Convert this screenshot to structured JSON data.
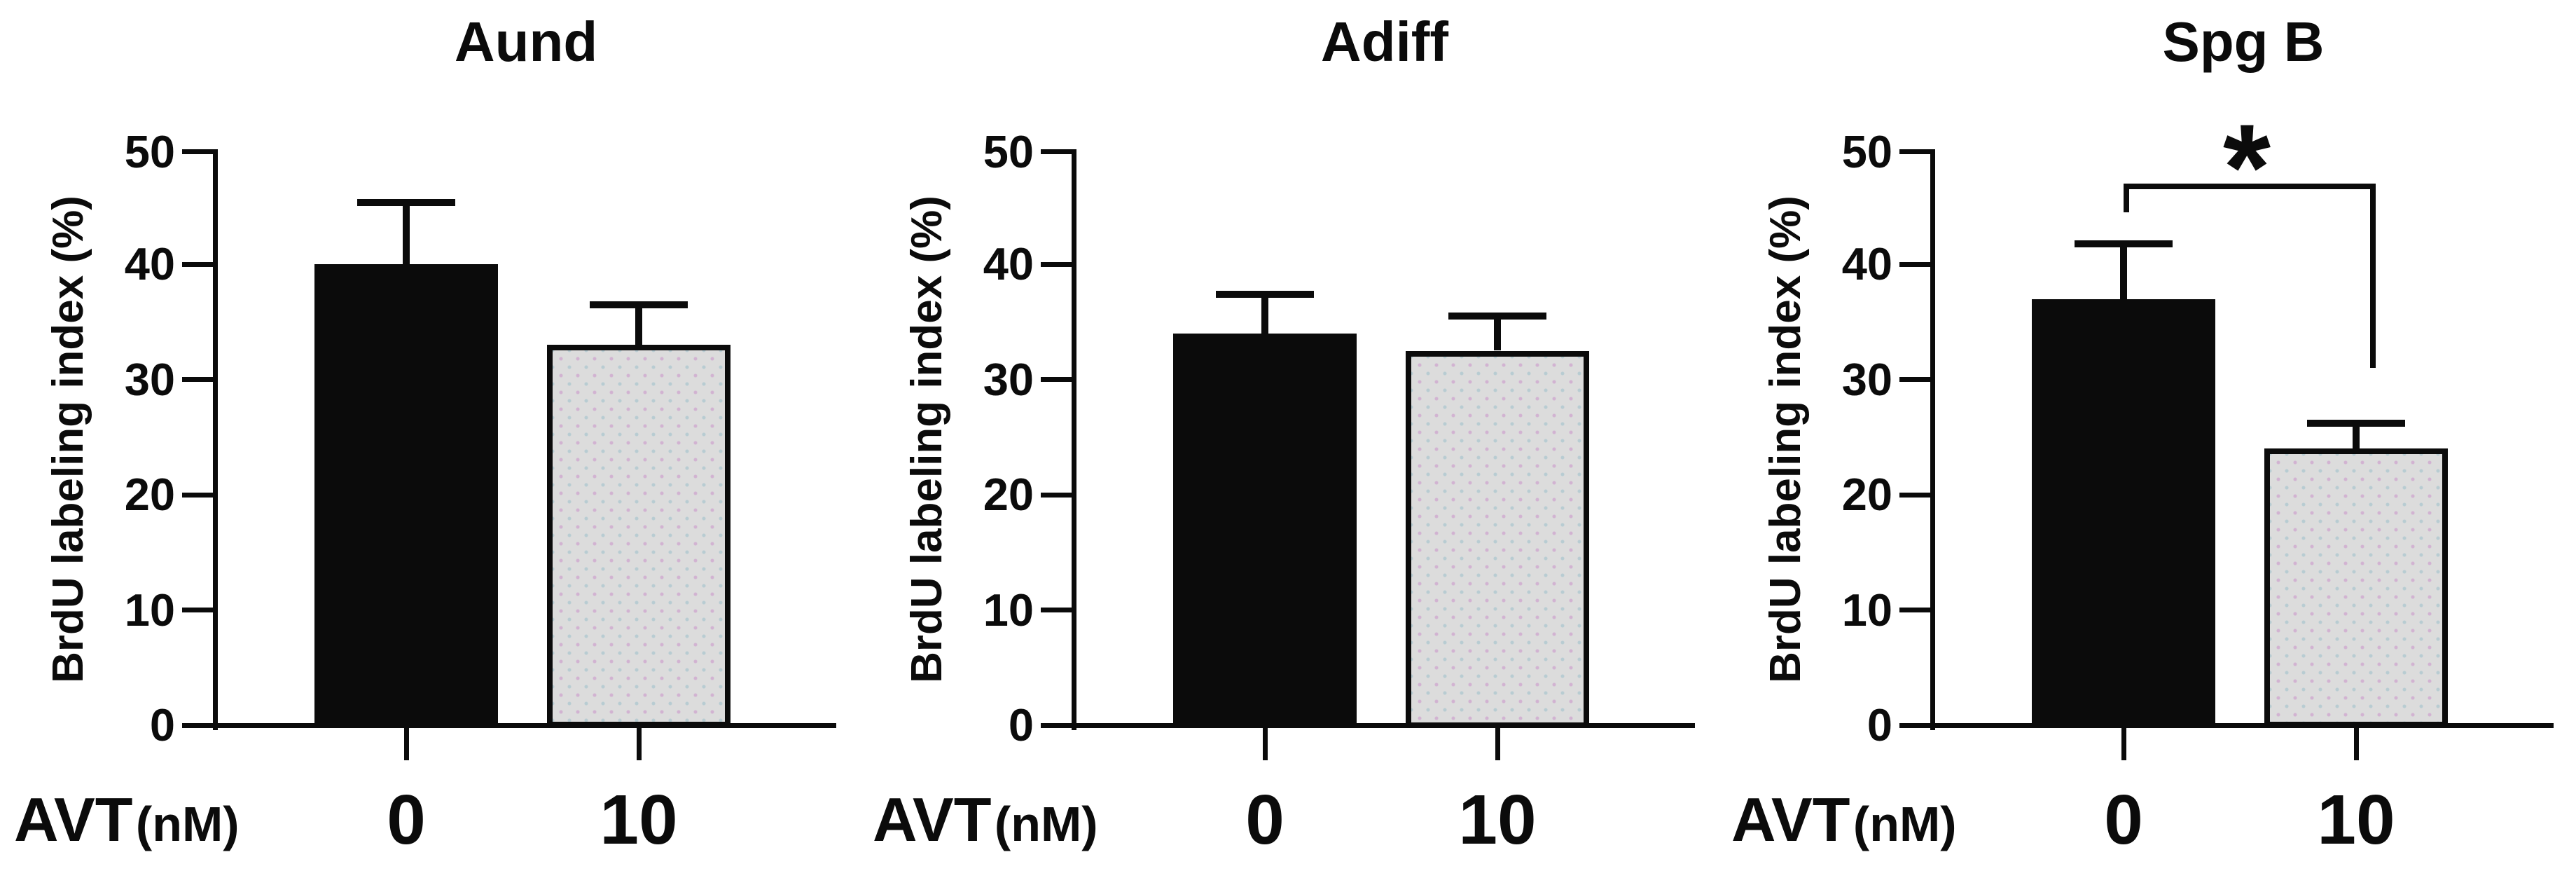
{
  "figure": {
    "x_label_main": "AVT",
    "x_label_unit": "(nM)",
    "y_axis_label": "BrdU labeling index (%)",
    "y_max": 50,
    "y_ticks": [
      0,
      10,
      20,
      30,
      40,
      50
    ],
    "colors": {
      "bar_avt_0": "#0b0b0b",
      "bar_avt_10": "#dcdcdc",
      "axis": "#0b0b0b",
      "background": "#ffffff"
    }
  },
  "chart_data": [
    {
      "type": "bar",
      "title": "Aund",
      "ylabel": "BrdU labeling index (%)",
      "xlabel": "AVT (nM)",
      "categories": [
        "0",
        "10"
      ],
      "values": [
        40.0,
        33.0
      ],
      "errors_sem_up": [
        5.4,
        3.5
      ],
      "ylim": [
        0,
        50
      ],
      "yticks": [
        0,
        10,
        20,
        30,
        40,
        50
      ],
      "bar_colors": [
        "#0b0b0b",
        "#dcdcdc"
      ],
      "grid": false,
      "legend": "none"
    },
    {
      "type": "bar",
      "title": "Adiff",
      "ylabel": "BrdU labeling index (%)",
      "xlabel": "AVT (nM)",
      "categories": [
        "0",
        "10"
      ],
      "values": [
        34.0,
        32.5
      ],
      "errors_sem_up": [
        3.4,
        3.0
      ],
      "ylim": [
        0,
        50
      ],
      "yticks": [
        0,
        10,
        20,
        30,
        40,
        50
      ],
      "bar_colors": [
        "#0b0b0b",
        "#dcdcdc"
      ],
      "grid": false,
      "legend": "none"
    },
    {
      "type": "bar",
      "title": "Spg B",
      "ylabel": "BrdU labeling index (%)",
      "xlabel": "AVT (nM)",
      "categories": [
        "0",
        "10"
      ],
      "values": [
        37.0,
        24.0
      ],
      "errors_sem_up": [
        4.8,
        2.2
      ],
      "ylim": [
        0,
        50
      ],
      "yticks": [
        0,
        10,
        20,
        30,
        40,
        50
      ],
      "bar_colors": [
        "#0b0b0b",
        "#dcdcdc"
      ],
      "grid": false,
      "legend": "none",
      "significance": {
        "label": "*",
        "pair": [
          "0",
          "10"
        ],
        "bracket_y_value": 47,
        "left_arm_bottom_value": 44.5,
        "right_arm_bottom_value": 31
      }
    }
  ]
}
